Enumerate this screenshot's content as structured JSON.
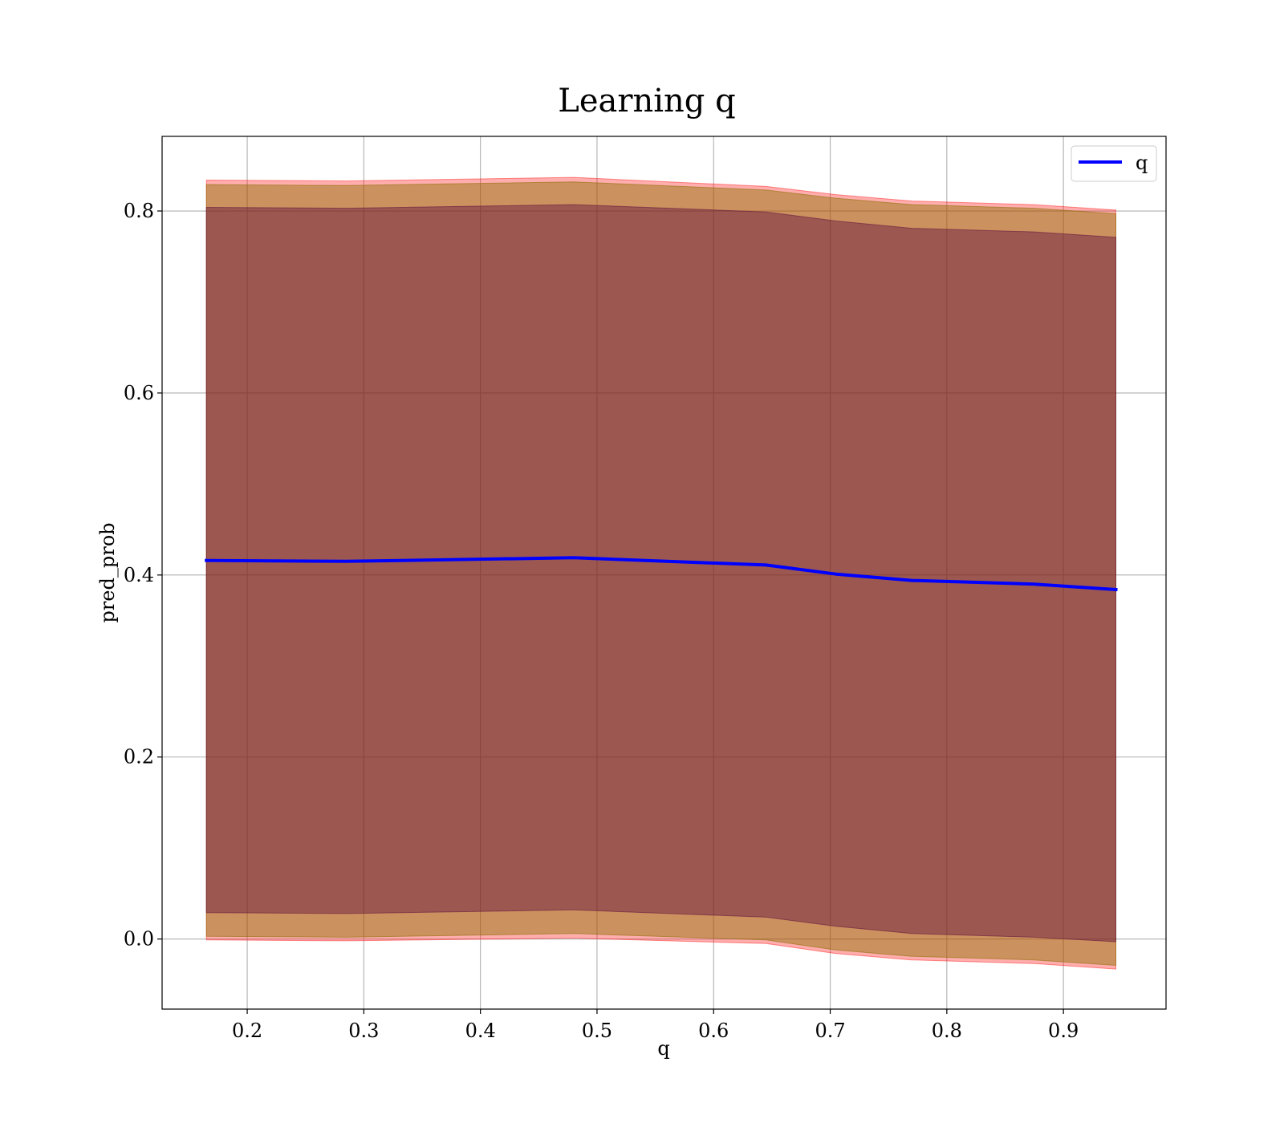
{
  "chart_data": {
    "type": "line",
    "title": "Learning q",
    "xlabel": "q",
    "ylabel": "pred_prob",
    "xlim": [
      0.127,
      0.988
    ],
    "ylim": [
      -0.077,
      0.882
    ],
    "xticks": [
      0.2,
      0.3,
      0.4,
      0.5,
      0.6,
      0.7,
      0.8,
      0.9
    ],
    "xtick_labels": [
      "0.2",
      "0.3",
      "0.4",
      "0.5",
      "0.6",
      "0.7",
      "0.8",
      "0.9"
    ],
    "yticks": [
      0.0,
      0.2,
      0.4,
      0.6,
      0.8
    ],
    "ytick_labels": [
      "0.0",
      "0.2",
      "0.4",
      "0.6",
      "0.8"
    ],
    "grid": true,
    "legend_position": "top-right",
    "x": [
      0.165,
      0.285,
      0.48,
      0.645,
      0.705,
      0.77,
      0.875,
      0.945
    ],
    "series": [
      {
        "name": "q",
        "color": "#0000ff",
        "values": [
          0.416,
          0.415,
          0.419,
          0.411,
          0.401,
          0.394,
          0.39,
          0.384
        ]
      }
    ],
    "bands": [
      {
        "color": "#ff0000",
        "opacity": 0.32,
        "lower": [
          -0.001,
          -0.002,
          0.001,
          -0.005,
          -0.016,
          -0.023,
          -0.027,
          -0.033
        ],
        "upper": [
          0.834,
          0.833,
          0.837,
          0.827,
          0.818,
          0.811,
          0.807,
          0.801
        ]
      },
      {
        "color": "#8b6e00",
        "opacity": 0.45,
        "lower": [
          0.003,
          0.002,
          0.006,
          -0.001,
          -0.012,
          -0.019,
          -0.023,
          -0.029
        ],
        "upper": [
          0.829,
          0.828,
          0.832,
          0.823,
          0.814,
          0.807,
          0.803,
          0.797
        ]
      },
      {
        "color": "#5a0a3c",
        "opacity": 0.42,
        "lower": [
          0.029,
          0.028,
          0.032,
          0.024,
          0.014,
          0.006,
          0.002,
          -0.003
        ],
        "upper": [
          0.804,
          0.803,
          0.807,
          0.799,
          0.789,
          0.781,
          0.777,
          0.771
        ]
      }
    ]
  }
}
